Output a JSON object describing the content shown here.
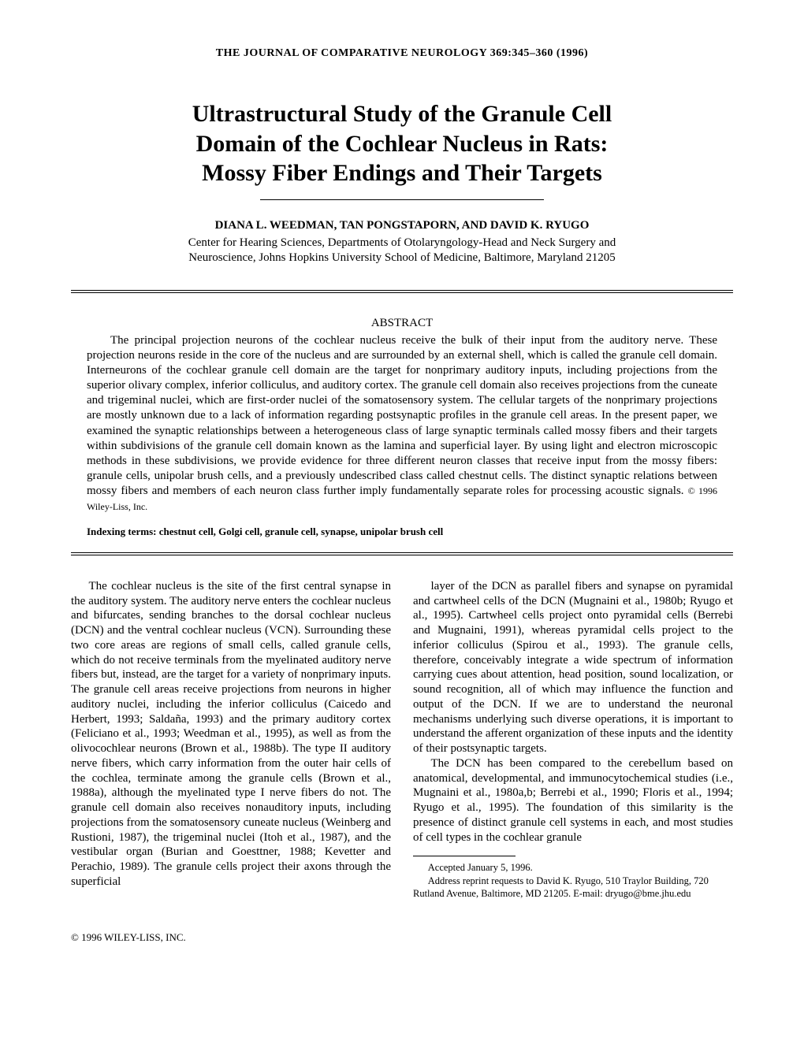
{
  "journal_header": "THE JOURNAL OF COMPARATIVE NEUROLOGY 369:345–360 (1996)",
  "title_line1": "Ultrastructural Study of the Granule Cell",
  "title_line2": "Domain of the Cochlear Nucleus in Rats:",
  "title_line3": "Mossy Fiber Endings and Their Targets",
  "authors": "DIANA L. WEEDMAN, TAN PONGSTAPORN, AND DAVID K. RYUGO",
  "affiliation_line1": "Center for Hearing Sciences, Departments of Otolaryngology-Head and Neck Surgery and",
  "affiliation_line2": "Neuroscience, Johns Hopkins University School of Medicine, Baltimore, Maryland 21205",
  "abstract_heading": "ABSTRACT",
  "abstract_body": "The principal projection neurons of the cochlear nucleus receive the bulk of their input from the auditory nerve. These projection neurons reside in the core of the nucleus and are surrounded by an external shell, which is called the granule cell domain. Interneurons of the cochlear granule cell domain are the target for nonprimary auditory inputs, including projections from the superior olivary complex, inferior colliculus, and auditory cortex. The granule cell domain also receives projections from the cuneate and trigeminal nuclei, which are first-order nuclei of the somatosensory system. The cellular targets of the nonprimary projections are mostly unknown due to a lack of information regarding postsynaptic profiles in the granule cell areas. In the present paper, we examined the synaptic relationships between a heterogeneous class of large synaptic terminals called mossy fibers and their targets within subdivisions of the granule cell domain known as the lamina and superficial layer. By using light and electron microscopic methods in these subdivisions, we provide evidence for three different neuron classes that receive input from the mossy fibers: granule cells, unipolar brush cells, and a previously undescribed class called chestnut cells. The distinct synaptic relations between mossy fibers and members of each neuron class further imply fundamentally separate roles for processing acoustic signals.",
  "abstract_copyright": "© 1996 Wiley-Liss, Inc.",
  "indexing_label": "Indexing terms:",
  "indexing_terms": "chestnut cell, Golgi cell, granule cell, synapse, unipolar brush cell",
  "col1_p1": "The cochlear nucleus is the site of the first central synapse in the auditory system. The auditory nerve enters the cochlear nucleus and bifurcates, sending branches to the dorsal cochlear nucleus (DCN) and the ventral cochlear nucleus (VCN). Surrounding these two core areas are regions of small cells, called granule cells, which do not receive terminals from the myelinated auditory nerve fibers but, instead, are the target for a variety of nonprimary inputs. The granule cell areas receive projections from neurons in higher auditory nuclei, including the inferior colliculus (Caicedo and Herbert, 1993; Saldaña, 1993) and the primary auditory cortex (Feliciano et al., 1993; Weedman et al., 1995), as well as from the olivocochlear neurons (Brown et al., 1988b). The type II auditory nerve fibers, which carry information from the outer hair cells of the cochlea, terminate among the granule cells (Brown et al., 1988a), although the myelinated type I nerve fibers do not. The granule cell domain also receives nonauditory inputs, including projections from the somatosensory cuneate nucleus (Weinberg and Rustioni, 1987), the trigeminal nuclei (Itoh et al., 1987), and the vestibular organ (Burian and Goesttner, 1988; Kevetter and Perachio, 1989). The granule cells project their axons through the superficial",
  "col2_p1": "layer of the DCN as parallel fibers and synapse on pyramidal and cartwheel cells of the DCN (Mugnaini et al., 1980b; Ryugo et al., 1995). Cartwheel cells project onto pyramidal cells (Berrebi and Mugnaini, 1991), whereas pyramidal cells project to the inferior colliculus (Spirou et al., 1993). The granule cells, therefore, conceivably integrate a wide spectrum of information carrying cues about attention, head position, sound localization, or sound recognition, all of which may influence the function and output of the DCN. If we are to understand the neuronal mechanisms underlying such diverse operations, it is important to understand the afferent organization of these inputs and the identity of their postsynaptic targets.",
  "col2_p2": "The DCN has been compared to the cerebellum based on anatomical, developmental, and immunocytochemical studies (i.e., Mugnaini et al., 1980a,b; Berrebi et al., 1990; Floris et al., 1994; Ryugo et al., 1995). The foundation of this similarity is the presence of distinct granule cell systems in each, and most studies of cell types in the cochlear granule",
  "footnote_accepted": "Accepted January 5, 1996.",
  "footnote_address": "Address reprint requests to David K. Ryugo, 510 Traylor Building, 720 Rutland Avenue, Baltimore, MD 21205. E-mail: dryugo@bme.jhu.edu",
  "footer_copyright": "© 1996 WILEY-LISS, INC."
}
